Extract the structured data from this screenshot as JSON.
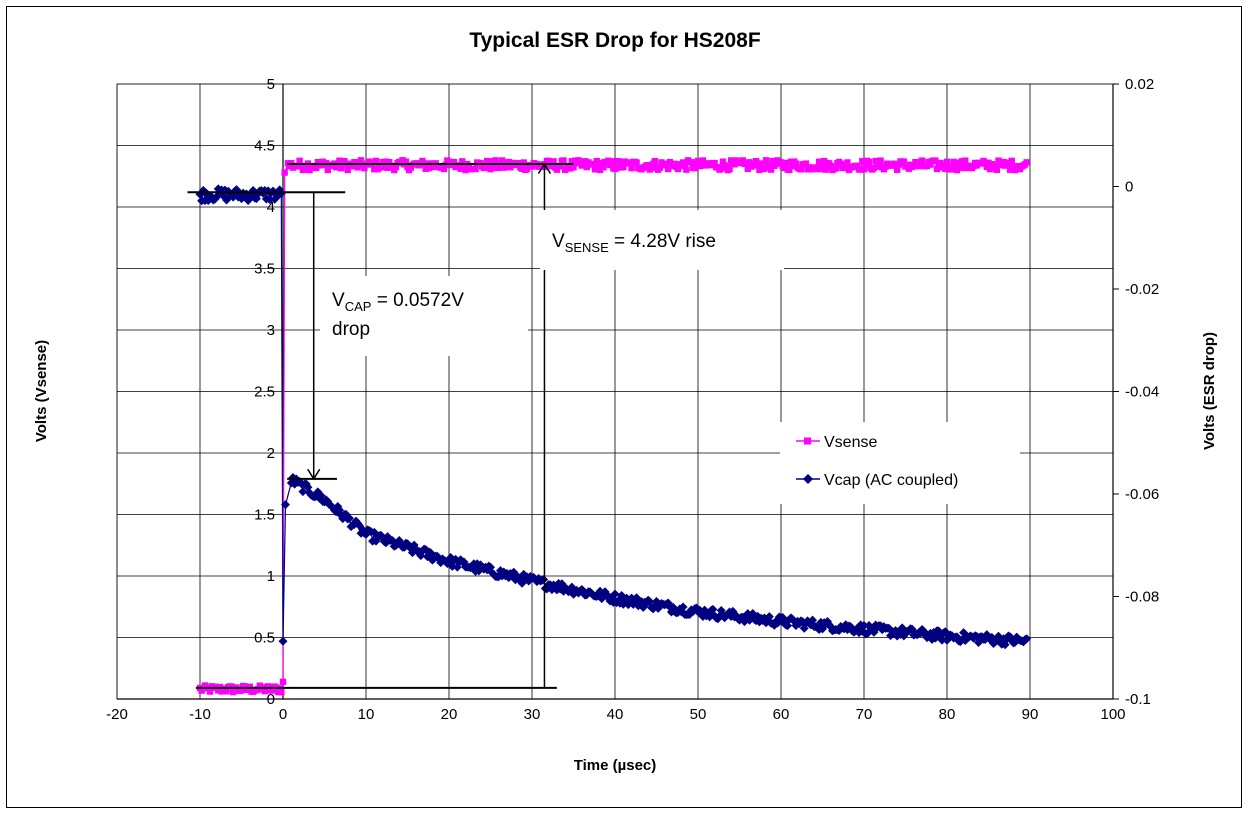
{
  "chart_data": {
    "type": "scatter",
    "title": "Typical ESR Drop for HS208F",
    "xlabel": "Time (µsec)",
    "ylabel": "Volts (Vsense)",
    "y2label": "Volts (ESR drop)",
    "xlim": [
      -20,
      100
    ],
    "ylim": [
      0,
      5
    ],
    "y2lim": [
      -0.1,
      0.02
    ],
    "x_ticks": [
      "-20",
      "-10",
      "0",
      "10",
      "20",
      "30",
      "40",
      "50",
      "60",
      "70",
      "80",
      "90",
      "100"
    ],
    "y_ticks": [
      "0",
      "0.5",
      "1",
      "1.5",
      "2",
      "2.5",
      "3",
      "3.5",
      "4",
      "4.5",
      "5"
    ],
    "y2_ticks": [
      "-0.1",
      "-0.08",
      "-0.06",
      "-0.04",
      "-0.02",
      "0",
      "0.02"
    ],
    "grid": true,
    "legend_position": "right",
    "series": [
      {
        "name": "Vsense",
        "color": "#ff00ff",
        "marker": "square",
        "axis": "left",
        "segments": [
          {
            "x_start": -10,
            "x_end": -0.2,
            "y": 0.08,
            "noise": 0.03
          },
          {
            "x_start": 0,
            "x_end": 0,
            "y": 0.14
          },
          {
            "x_start": 0.2,
            "x_end": 0.2,
            "y": 4.28
          },
          {
            "x_start": 0.6,
            "x_end": 89.6,
            "y": 4.34,
            "noise": 0.04
          }
        ]
      },
      {
        "name": "Vcap (AC coupled)",
        "color": "#000080",
        "marker": "diamond",
        "axis": "left",
        "segments": [
          {
            "x_start": -10,
            "x_end": -0.2,
            "y": 4.1,
            "noise": 0.05
          },
          {
            "x_start": 0,
            "x_end": 0,
            "y": 0.47
          },
          {
            "x_start": 0.3,
            "x_end": 0.3,
            "y": 1.58
          }
        ],
        "decay_points": [
          [
            1,
            1.78
          ],
          [
            5,
            1.62
          ],
          [
            10,
            1.34
          ],
          [
            20,
            1.12
          ],
          [
            30,
            0.96
          ],
          [
            40,
            0.82
          ],
          [
            50,
            0.71
          ],
          [
            60,
            0.63
          ],
          [
            70,
            0.57
          ],
          [
            80,
            0.51
          ],
          [
            89.6,
            0.47
          ]
        ],
        "decay_noise": 0.04
      }
    ],
    "annotations": {
      "vsense": {
        "main": "V",
        "sub": "SENSE",
        "rest": " = 4.28V rise"
      },
      "vcap": {
        "main": "V",
        "sub": "CAP",
        "rest": " = 0.0572V",
        "line2": "drop"
      }
    }
  }
}
